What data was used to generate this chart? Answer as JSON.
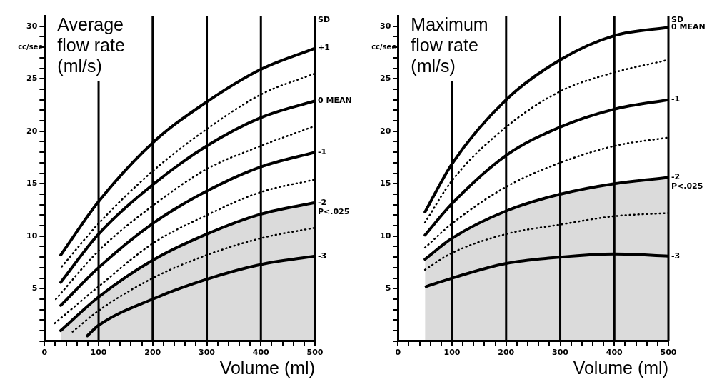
{
  "chart_data": [
    {
      "type": "line",
      "title": "Average flow rate (ml/s)",
      "xlabel": "Volume (ml)",
      "ylabel": "cc/sec",
      "legend_title": "SD",
      "xlim": [
        0,
        500
      ],
      "ylim": [
        0,
        31
      ],
      "xticks": [
        0,
        {
          "value": 20,
          "label": null
        },
        {
          "value": 40,
          "label": null
        },
        {
          "value": 60,
          "label": null
        },
        {
          "value": 80,
          "label": null
        },
        100,
        {
          "value": 120,
          "label": null
        },
        {
          "value": 140,
          "label": null
        },
        {
          "value": 160,
          "label": null
        },
        {
          "value": 180,
          "label": null
        },
        200,
        {
          "value": 220,
          "label": null
        },
        {
          "value": 240,
          "label": null
        },
        {
          "value": 260,
          "label": null
        },
        {
          "value": 280,
          "label": null
        },
        300,
        {
          "value": 320,
          "label": null
        },
        {
          "value": 340,
          "label": null
        },
        {
          "value": 360,
          "label": null
        },
        {
          "value": 380,
          "label": null
        },
        400,
        {
          "value": 420,
          "label": null
        },
        {
          "value": 440,
          "label": null
        },
        {
          "value": 460,
          "label": null
        },
        {
          "value": 480,
          "label": null
        },
        500
      ],
      "yticks": [
        {
          "value": 0,
          "label": null
        },
        {
          "value": 1,
          "label": null
        },
        {
          "value": 2,
          "label": null
        },
        {
          "value": 3,
          "label": null
        },
        {
          "value": 4,
          "label": null
        },
        5,
        {
          "value": 6,
          "label": null
        },
        {
          "value": 7,
          "label": null
        },
        {
          "value": 8,
          "label": null
        },
        {
          "value": 9,
          "label": null
        },
        10,
        {
          "value": 11,
          "label": null
        },
        {
          "value": 12,
          "label": null
        },
        {
          "value": 13,
          "label": null
        },
        {
          "value": 14,
          "label": null
        },
        15,
        {
          "value": 16,
          "label": null
        },
        {
          "value": 17,
          "label": null
        },
        {
          "value": 18,
          "label": null
        },
        {
          "value": 19,
          "label": null
        },
        20,
        {
          "value": 21,
          "label": null
        },
        {
          "value": 22,
          "label": null
        },
        {
          "value": 23,
          "label": null
        },
        {
          "value": 24,
          "label": null
        },
        25,
        {
          "value": 26,
          "label": null
        },
        {
          "value": 27,
          "label": null
        },
        {
          "value": 28,
          "label": null
        },
        {
          "value": 29,
          "label": null
        },
        30
      ],
      "marker": "none",
      "legend": false,
      "grid": false,
      "series": [
        {
          "name": "+1",
          "color": "#000000",
          "line_style": "solid",
          "x": [
            30,
            100,
            200,
            300,
            400,
            500
          ],
          "values": [
            8.2,
            13.3,
            18.9,
            22.8,
            25.9,
            27.9
          ]
        },
        {
          "color": "#000000",
          "line_style": "dotted",
          "x": [
            32,
            100,
            200,
            300,
            400,
            500
          ],
          "values": [
            7.1,
            11.2,
            16.2,
            20.2,
            23.5,
            25.5
          ]
        },
        {
          "name": "0 MEAN",
          "color": "#000000",
          "line_style": "solid",
          "x": [
            30,
            100,
            200,
            300,
            400,
            500
          ],
          "values": [
            5.6,
            10.2,
            14.9,
            18.6,
            21.3,
            22.9
          ]
        },
        {
          "color": "#000000",
          "line_style": "dotted",
          "x": [
            21,
            100,
            200,
            300,
            400,
            500
          ],
          "values": [
            4.0,
            8.6,
            12.9,
            16.4,
            18.6,
            20.5
          ]
        },
        {
          "name": "-1",
          "color": "#000000",
          "line_style": "solid",
          "x": [
            30,
            100,
            200,
            300,
            400,
            500
          ],
          "values": [
            3.4,
            7.0,
            11.2,
            14.3,
            16.6,
            18.0
          ]
        },
        {
          "color": "#000000",
          "line_style": "dotted",
          "x": [
            19,
            100,
            200,
            300,
            400,
            500
          ],
          "values": [
            1.7,
            5.2,
            9.3,
            12.0,
            14.2,
            15.4
          ]
        },
        {
          "name": "-2",
          "type": "area",
          "color": "#000000",
          "line_style": "solid",
          "x": [
            30,
            100,
            200,
            300,
            400,
            500
          ],
          "values": [
            1.0,
            4.2,
            7.7,
            10.2,
            12.1,
            13.2
          ]
        },
        {
          "color": "#000000",
          "line_style": "dotted",
          "x": [
            52,
            100,
            200,
            300,
            400,
            500
          ],
          "values": [
            0.9,
            2.9,
            6.0,
            8.2,
            9.8,
            10.8
          ]
        },
        {
          "name": "-3",
          "color": "#000000",
          "line_style": "solid",
          "x": [
            79,
            100,
            200,
            300,
            400,
            500
          ],
          "values": [
            0.5,
            1.5,
            4.0,
            5.9,
            7.3,
            8.1
          ]
        }
      ],
      "ref_lines": [
        {
          "axis": "x",
          "value": 100,
          "color": "#000000"
        },
        {
          "axis": "x",
          "value": 200,
          "color": "#000000"
        },
        {
          "axis": "x",
          "value": 300,
          "color": "#000000"
        },
        {
          "axis": "x",
          "value": 400,
          "color": "#000000"
        }
      ],
      "annotations": [
        {
          "text": "P<.025",
          "x": 500,
          "y": 13.2
        }
      ]
    },
    {
      "type": "line",
      "title": "Maximum flow rate (ml/s)",
      "xlabel": "Volume (ml)",
      "ylabel": "cc/sec",
      "legend_title": "SD",
      "xlim": [
        0,
        500
      ],
      "ylim": [
        0,
        31
      ],
      "xticks": [
        0,
        {
          "value": 20,
          "label": null
        },
        {
          "value": 40,
          "label": null
        },
        {
          "value": 60,
          "label": null
        },
        {
          "value": 80,
          "label": null
        },
        100,
        {
          "value": 120,
          "label": null
        },
        {
          "value": 140,
          "label": null
        },
        {
          "value": 160,
          "label": null
        },
        {
          "value": 180,
          "label": null
        },
        200,
        {
          "value": 220,
          "label": null
        },
        {
          "value": 240,
          "label": null
        },
        {
          "value": 260,
          "label": null
        },
        {
          "value": 280,
          "label": null
        },
        300,
        {
          "value": 320,
          "label": null
        },
        {
          "value": 340,
          "label": null
        },
        {
          "value": 360,
          "label": null
        },
        {
          "value": 380,
          "label": null
        },
        400,
        {
          "value": 420,
          "label": null
        },
        {
          "value": 440,
          "label": null
        },
        {
          "value": 460,
          "label": null
        },
        {
          "value": 480,
          "label": null
        },
        500
      ],
      "yticks": [
        {
          "value": 0,
          "label": null
        },
        {
          "value": 1,
          "label": null
        },
        {
          "value": 2,
          "label": null
        },
        {
          "value": 3,
          "label": null
        },
        {
          "value": 4,
          "label": null
        },
        5,
        {
          "value": 6,
          "label": null
        },
        {
          "value": 7,
          "label": null
        },
        {
          "value": 8,
          "label": null
        },
        {
          "value": 9,
          "label": null
        },
        10,
        {
          "value": 11,
          "label": null
        },
        {
          "value": 12,
          "label": null
        },
        {
          "value": 13,
          "label": null
        },
        {
          "value": 14,
          "label": null
        },
        15,
        {
          "value": 16,
          "label": null
        },
        {
          "value": 17,
          "label": null
        },
        {
          "value": 18,
          "label": null
        },
        {
          "value": 19,
          "label": null
        },
        20,
        {
          "value": 21,
          "label": null
        },
        {
          "value": 22,
          "label": null
        },
        {
          "value": 23,
          "label": null
        },
        {
          "value": 24,
          "label": null
        },
        25,
        {
          "value": 26,
          "label": null
        },
        {
          "value": 27,
          "label": null
        },
        {
          "value": 28,
          "label": null
        },
        {
          "value": 29,
          "label": null
        },
        30
      ],
      "marker": "none",
      "legend": false,
      "grid": false,
      "series": [
        {
          "name": "0 MEAN",
          "color": "#000000",
          "line_style": "solid",
          "x": [
            50,
            100,
            200,
            300,
            400,
            500
          ],
          "values": [
            12.3,
            16.9,
            23.0,
            26.8,
            29.1,
            29.9
          ]
        },
        {
          "color": "#000000",
          "line_style": "dotted",
          "x": [
            50,
            100,
            200,
            300,
            400,
            500
          ],
          "values": [
            11.3,
            15.3,
            20.4,
            23.8,
            25.6,
            26.8
          ]
        },
        {
          "name": "-1",
          "color": "#000000",
          "line_style": "solid",
          "x": [
            50,
            100,
            200,
            300,
            400,
            500
          ],
          "values": [
            10.1,
            13.1,
            17.7,
            20.4,
            22.1,
            23.0
          ]
        },
        {
          "color": "#000000",
          "line_style": "dotted",
          "x": [
            50,
            100,
            200,
            300,
            400,
            500
          ],
          "values": [
            8.9,
            11.2,
            14.7,
            17.0,
            18.6,
            19.4
          ]
        },
        {
          "name": "-2",
          "type": "area",
          "color": "#000000",
          "line_style": "solid",
          "x": [
            50,
            100,
            200,
            300,
            400,
            500
          ],
          "values": [
            7.8,
            9.8,
            12.4,
            14.0,
            15.0,
            15.6
          ]
        },
        {
          "color": "#000000",
          "line_style": "dotted",
          "x": [
            50,
            100,
            200,
            300,
            400,
            500
          ],
          "values": [
            6.8,
            8.4,
            10.2,
            11.1,
            11.9,
            12.2
          ]
        },
        {
          "name": "-3",
          "color": "#000000",
          "line_style": "solid",
          "x": [
            52,
            100,
            200,
            300,
            400,
            500
          ],
          "values": [
            5.2,
            6.0,
            7.4,
            8.0,
            8.3,
            8.1
          ]
        }
      ],
      "ref_lines": [
        {
          "axis": "x",
          "value": 100,
          "color": "#000000"
        },
        {
          "axis": "x",
          "value": 200,
          "color": "#000000"
        },
        {
          "axis": "x",
          "value": 300,
          "color": "#000000"
        },
        {
          "axis": "x",
          "value": 400,
          "color": "#000000"
        }
      ],
      "annotations": [
        {
          "text": "P<.025",
          "x": 500,
          "y": 15.6
        }
      ]
    }
  ]
}
